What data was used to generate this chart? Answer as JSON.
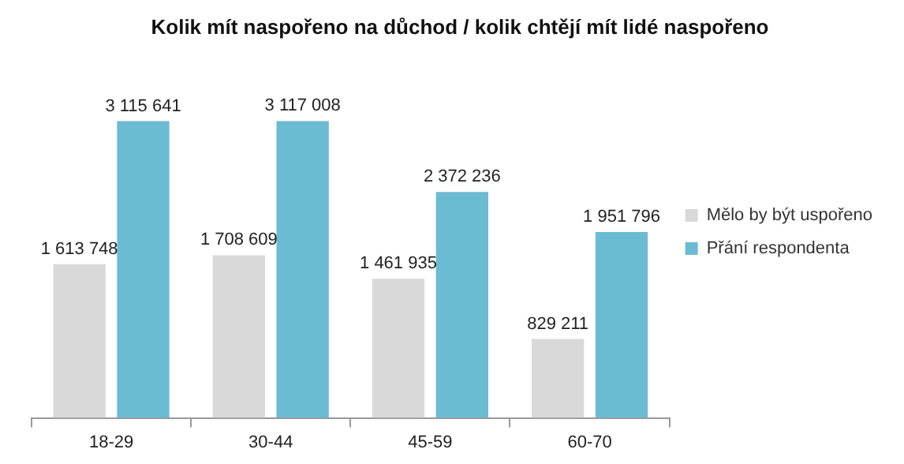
{
  "chart_data": {
    "type": "bar",
    "title": "Kolik mít naspořeno na důchod / kolik chtějí mít lidé naspořeno",
    "categories": [
      "18-29",
      "30-44",
      "45-59",
      "60-70"
    ],
    "series": [
      {
        "name": "Mělo by být uspořeno",
        "color": "#d9d9d9",
        "values": [
          1613748,
          1708609,
          1461935,
          829211
        ],
        "value_labels": [
          "1 613 748",
          "1 708 609",
          "1 461 935",
          "829 211"
        ]
      },
      {
        "name": "Přání respondenta",
        "color": "#6bbbd3",
        "values": [
          3115641,
          3117008,
          2372236,
          1951796
        ],
        "value_labels": [
          "3 115 641",
          "3 117 008",
          "2 372 236",
          "1 951 796"
        ]
      }
    ],
    "legend": "right",
    "tick_labels": "x"
  }
}
